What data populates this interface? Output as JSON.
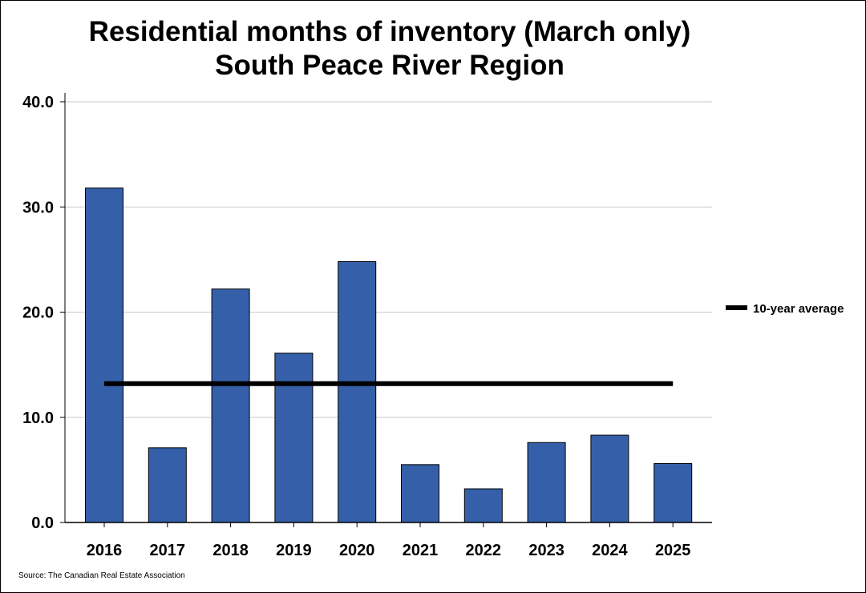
{
  "title_line1": "Residential months of inventory (March only)",
  "title_line2": "South Peace River Region",
  "source": "Source: The Canadian Real Estate Association",
  "colors": {
    "bar": "#3560a9",
    "bar_border": "#000000",
    "average_line": "#000000",
    "grid": "#c8c8c8"
  },
  "chart_data": {
    "type": "bar",
    "title": "Residential months of inventory (March only) South Peace River Region",
    "categories": [
      "2016",
      "2017",
      "2018",
      "2019",
      "2020",
      "2021",
      "2022",
      "2023",
      "2024",
      "2025"
    ],
    "series": [
      {
        "values": [
          31.8,
          7.1,
          22.2,
          16.1,
          24.8,
          5.5,
          3.2,
          7.6,
          8.3,
          5.6
        ]
      }
    ],
    "average": {
      "name": "10-year average",
      "value": 13.2
    },
    "ylim": [
      0,
      40
    ],
    "yticks": [
      0,
      10,
      20,
      30,
      40
    ],
    "ytick_labels": [
      "0.0",
      "10.0",
      "20.0",
      "30.0",
      "40.0"
    ],
    "xlabel": "",
    "ylabel": "",
    "grid": true,
    "legend_position": "right"
  }
}
